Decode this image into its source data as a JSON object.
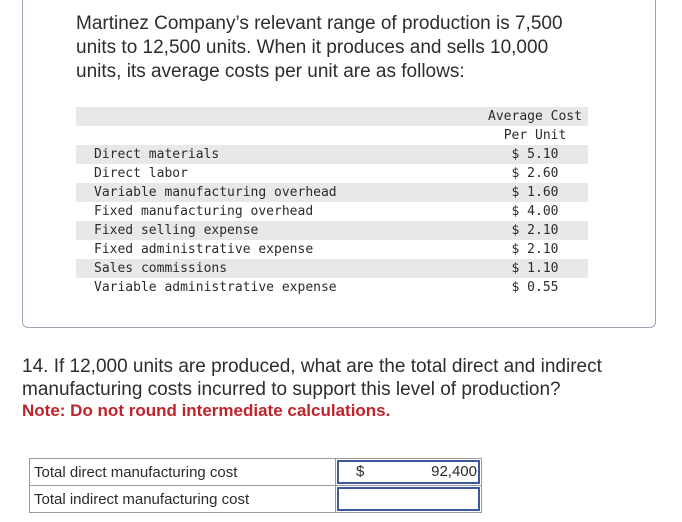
{
  "intro": "Martinez Company’s relevant range of production is 7,500 units to 12,500 units. When it produces and sells 10,000 units, its average costs per unit are as follows:",
  "cost_table": {
    "header_line1": "Average Cost",
    "header_line2": "Per Unit",
    "rows": [
      {
        "label": "Direct materials",
        "value": "$ 5.10"
      },
      {
        "label": "Direct labor",
        "value": "$ 2.60"
      },
      {
        "label": "Variable manufacturing overhead",
        "value": "$ 1.60"
      },
      {
        "label": "Fixed manufacturing overhead",
        "value": "$ 4.00"
      },
      {
        "label": "Fixed selling expense",
        "value": "$ 2.10"
      },
      {
        "label": "Fixed administrative expense",
        "value": "$ 2.10"
      },
      {
        "label": "Sales commissions",
        "value": "$ 1.10"
      },
      {
        "label": "Variable administrative expense",
        "value": "$ 0.55"
      }
    ]
  },
  "question": "14. If 12,000 units are produced, what are the total direct and indirect manufacturing costs incurred to support this level of production?",
  "note": "Note: Do not round intermediate calculations.",
  "answers": [
    {
      "label": "Total direct manufacturing cost",
      "currency": "$",
      "value": "92,400"
    },
    {
      "label": "Total indirect manufacturing cost",
      "currency": "",
      "value": ""
    }
  ]
}
